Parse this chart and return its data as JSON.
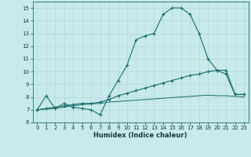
{
  "xlabel": "Humidex (Indice chaleur)",
  "xlim": [
    -0.5,
    23.5
  ],
  "ylim": [
    6,
    15.5
  ],
  "yticks": [
    6,
    7,
    8,
    9,
    10,
    11,
    12,
    13,
    14,
    15
  ],
  "xticks": [
    0,
    1,
    2,
    3,
    4,
    5,
    6,
    7,
    8,
    9,
    10,
    11,
    12,
    13,
    14,
    15,
    16,
    17,
    18,
    19,
    20,
    21,
    22,
    23
  ],
  "background_color": "#c8eaea",
  "grid_color": "#b0d8d8",
  "line_color": "#1a6b6b",
  "series1_x": [
    0,
    1,
    2,
    3,
    4,
    5,
    6,
    7,
    8,
    9,
    10,
    11,
    12,
    13,
    14,
    15,
    16,
    17,
    18,
    19,
    20,
    21,
    22,
    23
  ],
  "series1_y": [
    7.0,
    8.1,
    7.1,
    7.5,
    7.2,
    7.1,
    7.0,
    6.6,
    8.1,
    9.3,
    10.5,
    12.5,
    12.8,
    13.0,
    14.5,
    15.0,
    15.0,
    14.5,
    13.0,
    11.0,
    10.1,
    9.8,
    8.2,
    8.2
  ],
  "series2_x": [
    0,
    1,
    2,
    3,
    4,
    5,
    6,
    7,
    8,
    9,
    10,
    11,
    12,
    13,
    14,
    15,
    16,
    17,
    18,
    19,
    20,
    21,
    22,
    23
  ],
  "series2_y": [
    7.0,
    7.1,
    7.2,
    7.3,
    7.4,
    7.5,
    7.5,
    7.6,
    7.8,
    8.1,
    8.3,
    8.5,
    8.7,
    8.9,
    9.1,
    9.3,
    9.5,
    9.7,
    9.8,
    10.0,
    10.1,
    10.1,
    8.2,
    8.2
  ],
  "series3_x": [
    0,
    1,
    2,
    3,
    4,
    5,
    6,
    7,
    8,
    9,
    10,
    11,
    12,
    13,
    14,
    15,
    16,
    17,
    18,
    19,
    20,
    21,
    22,
    23
  ],
  "series3_y": [
    7.0,
    7.05,
    7.1,
    7.2,
    7.3,
    7.4,
    7.45,
    7.5,
    7.6,
    7.65,
    7.7,
    7.75,
    7.8,
    7.85,
    7.9,
    7.95,
    8.0,
    8.05,
    8.1,
    8.15,
    8.1,
    8.1,
    8.05,
    8.0
  ],
  "tick_fontsize": 5.0,
  "xlabel_fontsize": 6.0
}
